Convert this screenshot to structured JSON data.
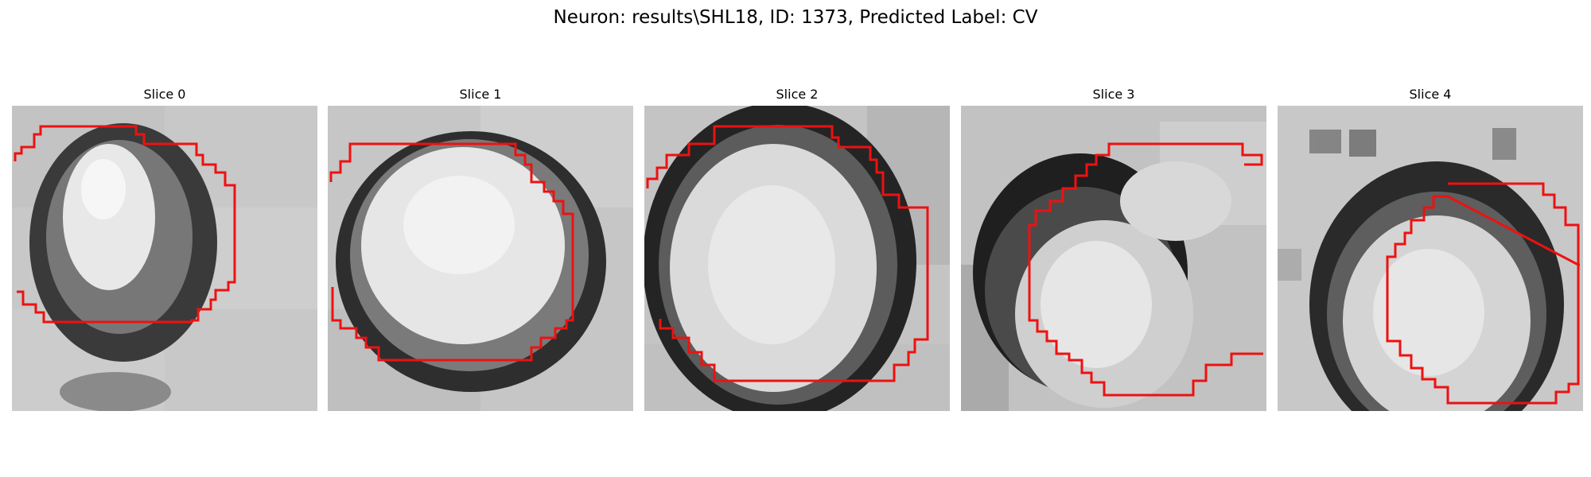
{
  "figure": {
    "title": "Neuron: results\\SHL18, ID: 1373, Predicted Label: CV"
  },
  "panels": [
    {
      "title": "Slice 0",
      "image": "grayscale electron micrograph crop with red segmentation contour"
    },
    {
      "title": "Slice 1",
      "image": "grayscale electron micrograph crop with red segmentation contour"
    },
    {
      "title": "Slice 2",
      "image": "grayscale electron micrograph crop with red segmentation contour"
    },
    {
      "title": "Slice 3",
      "image": "grayscale electron micrograph crop with red segmentation contour"
    },
    {
      "title": "Slice 4",
      "image": "grayscale electron micrograph crop with red segmentation contour"
    }
  ],
  "colors": {
    "contour": "#ee1111",
    "background": "#ffffff"
  }
}
